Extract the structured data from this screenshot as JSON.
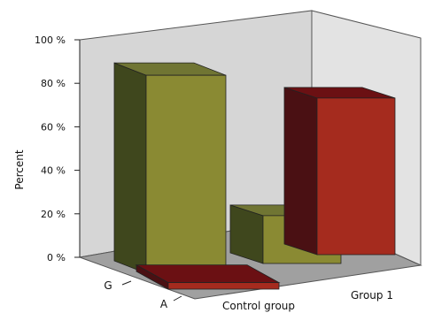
{
  "chart_data": {
    "type": "bar",
    "style": "3d-grouped",
    "title": "",
    "ylabel": "Percent",
    "xlabel": "",
    "ylim": [
      0,
      100
    ],
    "yticks": [
      0,
      20,
      40,
      60,
      80,
      100
    ],
    "ytick_labels": [
      "0 %",
      "20 %",
      "40 %",
      "60 %",
      "80 %",
      "100 %"
    ],
    "grid": false,
    "groups": [
      "Control group",
      "Group 1"
    ],
    "series": [
      {
        "name": "A",
        "values": [
          3,
          72
        ],
        "colors": {
          "front": "#a52b1e",
          "side": "#4a1013",
          "top": "#6b1013"
        }
      },
      {
        "name": "G",
        "values": [
          91,
          22
        ],
        "colors": {
          "front": "#8a8a33",
          "side": "#3f471d",
          "top": "#707533"
        }
      }
    ],
    "group_assignment": [
      [
        "Control group",
        "A",
        "G"
      ],
      [
        "Group 1",
        "G",
        "A"
      ]
    ],
    "colors": {
      "wall_back": "#d6d6d6",
      "wall_side": "#e3e3e3",
      "floor": "#a0a0a0"
    }
  }
}
